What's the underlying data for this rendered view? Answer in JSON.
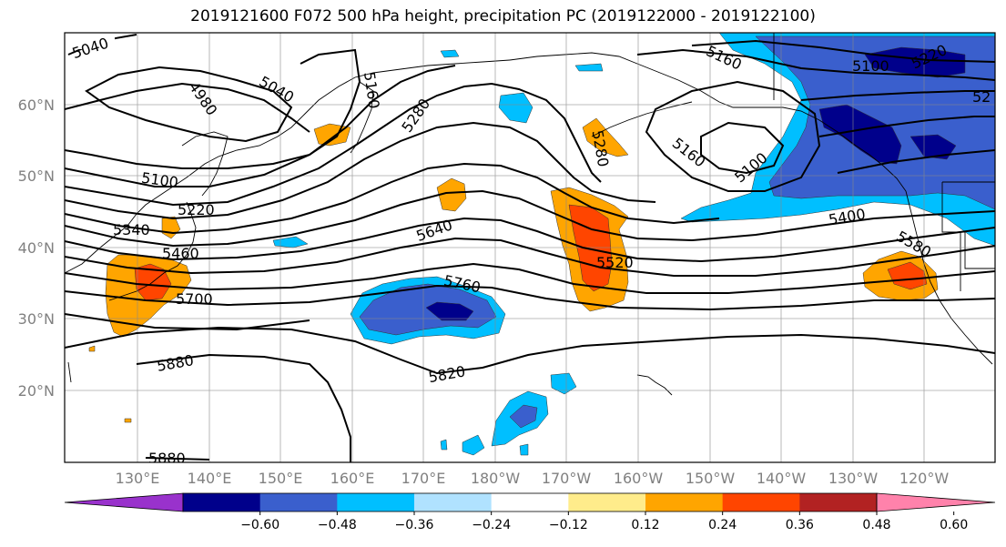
{
  "title": "2019121600 F072 500 hPa height, precipitation PC (2019122000 - 2019122100)",
  "lat_labels": [
    "60°N",
    "50°N",
    "40°N",
    "30°N",
    "20°N"
  ],
  "lon_labels": [
    "130°E",
    "140°E",
    "150°E",
    "160°E",
    "170°E",
    "180°W",
    "170°W",
    "160°W",
    "150°W",
    "140°W",
    "130°W",
    "120°W"
  ],
  "contour_labels": [
    "5040",
    "4980",
    "5040",
    "5160",
    "5280",
    "5280",
    "5160",
    "5100",
    "5160",
    "5100",
    "5220",
    "5100",
    "5220",
    "5340",
    "5460",
    "5700",
    "5640",
    "5520",
    "5400",
    "5580",
    "5760",
    "5820",
    "5880",
    "5880",
    "52"
  ],
  "colorbar": {
    "ticks": [
      "−0.60",
      "−0.48",
      "−0.36",
      "−0.24",
      "−0.12",
      "0.12",
      "0.24",
      "0.36",
      "0.48",
      "0.60"
    ],
    "colors": [
      "#9932cc",
      "#00008b",
      "#3a5fcd",
      "#00bfff",
      "#b0e2ff",
      "#ffffff",
      "#ffec8b",
      "#ffa500",
      "#ff4500",
      "#b22222",
      "#ff82ab"
    ]
  }
}
